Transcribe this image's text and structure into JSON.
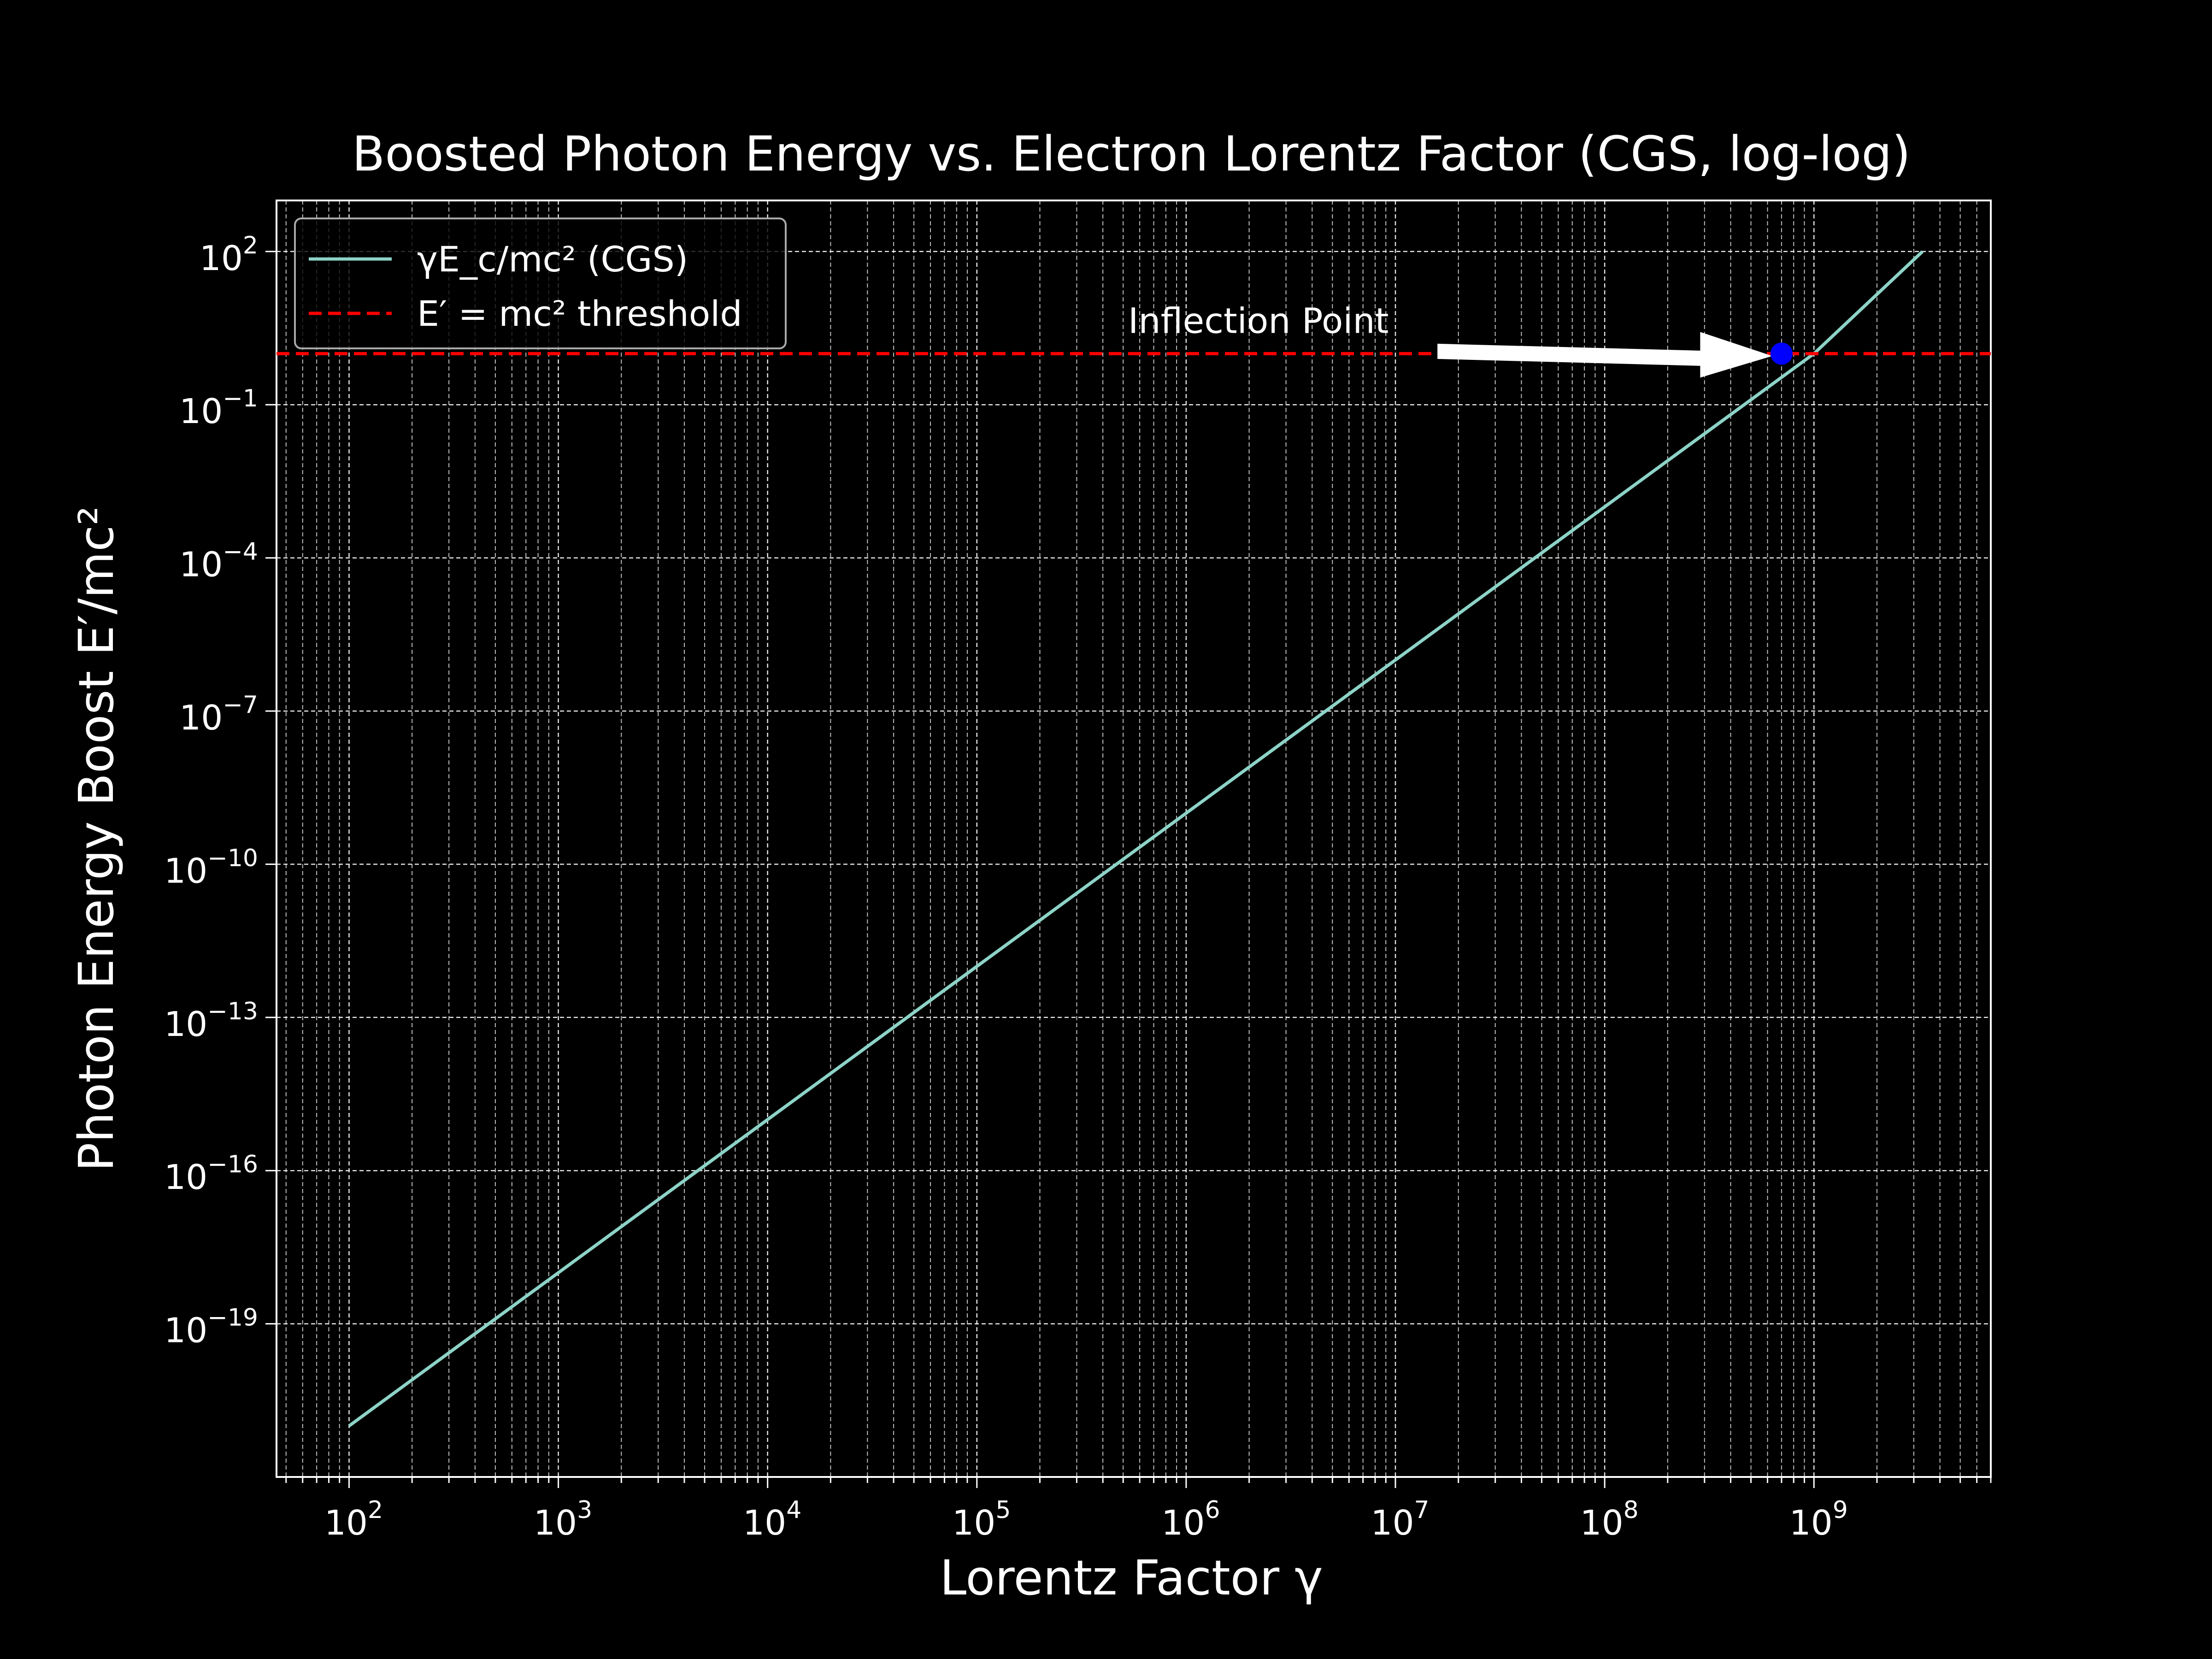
{
  "chart_data": {
    "type": "line",
    "title": "Boosted Photon Energy vs. Electron Lorentz Factor (CGS, log-log)",
    "xlabel": "Lorentz Factor γ",
    "ylabel": "Photon Energy Boost E′/mc²",
    "xscale": "log",
    "yscale": "log",
    "xlim": [
      45,
      7000000000
    ],
    "ylim": [
      1e-22,
      1000
    ],
    "grid": true,
    "legend_position": "upper-left",
    "x_ticks": [
      {
        "value": 100,
        "base": "10",
        "exp": "2"
      },
      {
        "value": 1000,
        "base": "10",
        "exp": "3"
      },
      {
        "value": 10000,
        "base": "10",
        "exp": "4"
      },
      {
        "value": 100000,
        "base": "10",
        "exp": "5"
      },
      {
        "value": 1000000,
        "base": "10",
        "exp": "6"
      },
      {
        "value": 10000000,
        "base": "10",
        "exp": "7"
      },
      {
        "value": 100000000,
        "base": "10",
        "exp": "8"
      },
      {
        "value": 1000000000,
        "base": "10",
        "exp": "9"
      }
    ],
    "y_ticks": [
      {
        "value": 100,
        "base": "10",
        "exp": "2"
      },
      {
        "value": 0.1,
        "base": "10",
        "exp": "−1"
      },
      {
        "value": 0.0001,
        "base": "10",
        "exp": "−4"
      },
      {
        "value": 1e-07,
        "base": "10",
        "exp": "−7"
      },
      {
        "value": 1e-10,
        "base": "10",
        "exp": "−10"
      },
      {
        "value": 1e-13,
        "base": "10",
        "exp": "−13"
      },
      {
        "value": 1e-16,
        "base": "10",
        "exp": "−16"
      },
      {
        "value": 1e-19,
        "base": "10",
        "exp": "−19"
      }
    ],
    "series": [
      {
        "name": "γE_c/mc² (CGS)",
        "color": "#8dd3c7",
        "style": "solid",
        "x": [
          100,
          1000,
          10000,
          100000,
          1000000,
          10000000,
          100000000,
          1000000000,
          3300000000
        ],
        "y": [
          1e-21,
          1e-18,
          1e-15,
          1e-12,
          1e-09,
          1e-06,
          0.001,
          1,
          100
        ]
      },
      {
        "name": "E′ = mc² threshold",
        "color": "#ff0000",
        "style": "dashed",
        "x": [
          45,
          7000000000
        ],
        "y": [
          1,
          1
        ]
      }
    ],
    "point": {
      "x": 700000000,
      "y": 1,
      "color": "#0000ff"
    },
    "annotations": [
      {
        "text": "Inflection Point",
        "arrow_from": [
          16000000,
          1
        ],
        "arrow_to": [
          700000000,
          1
        ],
        "arrow_color": "#ffffff"
      }
    ]
  }
}
